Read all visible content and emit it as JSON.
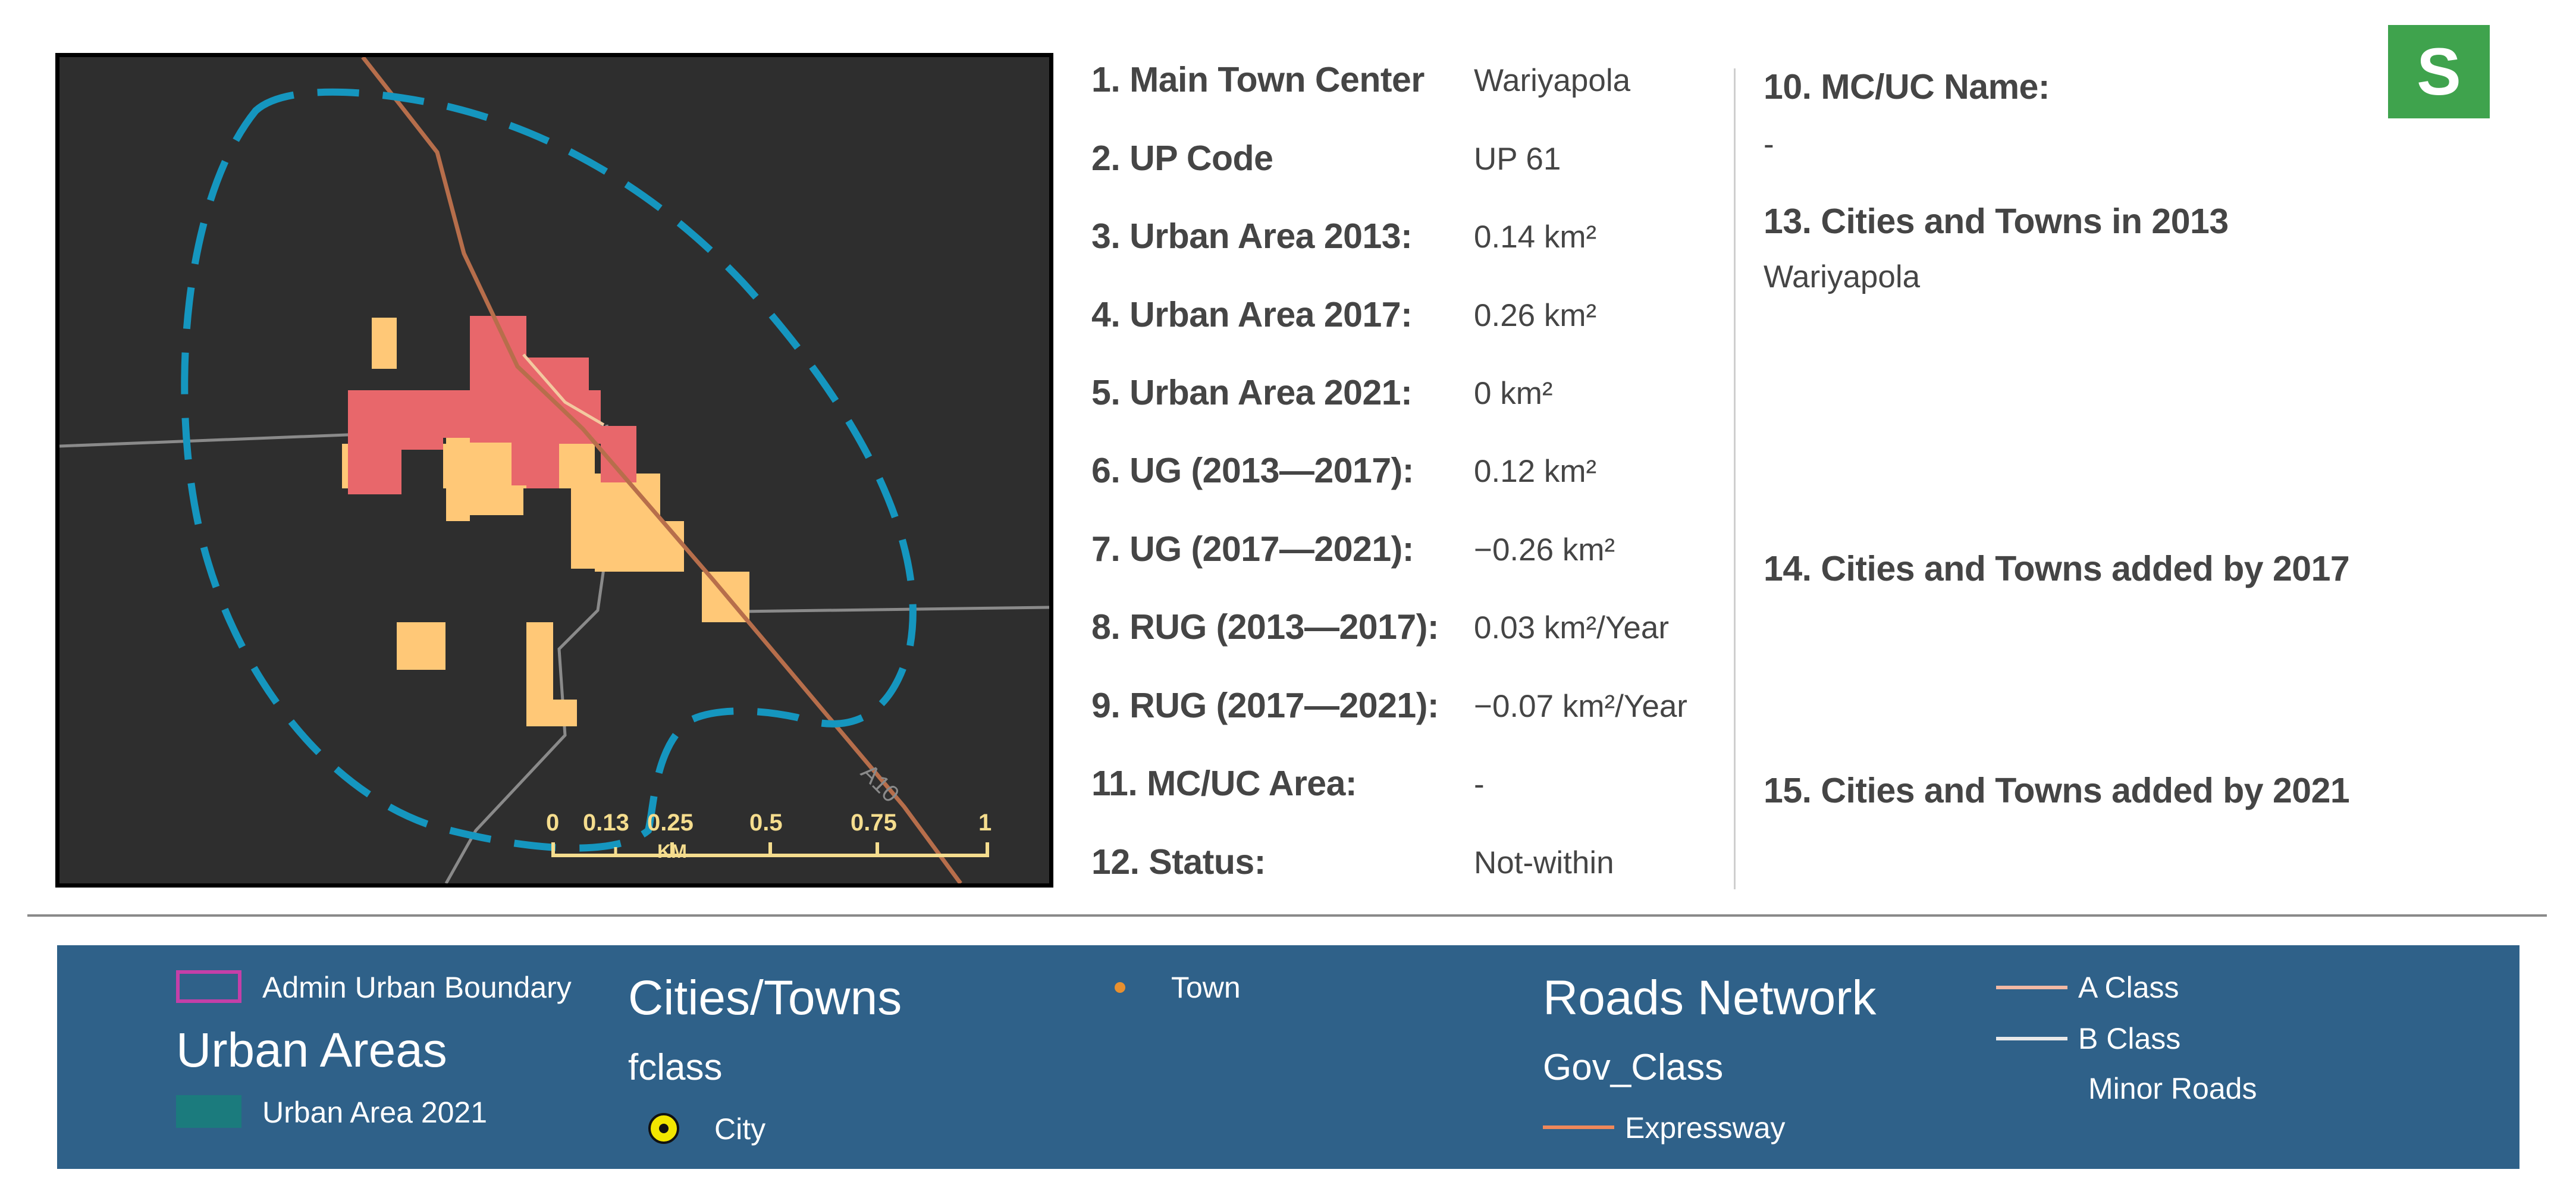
{
  "info": {
    "rows": [
      {
        "label": "1. Main Town Center",
        "value": "Wariyapola"
      },
      {
        "label": "2. UP Code",
        "value": "UP 61"
      },
      {
        "label": "3. Urban Area 2013:",
        "value": "0.14 km²"
      },
      {
        "label": "4. Urban Area 2017:",
        "value": "0.26 km²"
      },
      {
        "label": "5. Urban Area 2021:",
        "value": "0 km²"
      },
      {
        "label": "6. UG (2013—2017):",
        "value": "0.12 km²"
      },
      {
        "label": "7. UG (2017—2021):",
        "value": "−0.26 km²"
      },
      {
        "label": "8. RUG (2013—2017):",
        "value": "0.03 km²/Year"
      },
      {
        "label": "9. RUG (2017—2021):",
        "value": "−0.07 km²/Year"
      },
      {
        "label": "11. MC/UC Area:",
        "value": "-"
      },
      {
        "label": "12. Status:",
        "value": "Not-within"
      }
    ],
    "mcuc_name_label": "10. MC/UC Name:",
    "mcuc_name_value": "-",
    "cities_2013_label": "13. Cities and Towns in 2013",
    "cities_2013_value": "Wariyapola",
    "cities_2017_label": "14. Cities and Towns added by 2017",
    "cities_2021_label": "15. Cities and Towns added by 2021"
  },
  "badge": {
    "letter": "S",
    "color": "#3fa34d"
  },
  "map": {
    "road_label": "A10",
    "scale_ticks": [
      "0",
      "0.13",
      "0.25",
      "0.5",
      "0.75",
      "1"
    ],
    "scale_unit": "KM",
    "colors": {
      "background": "#2e2e2e",
      "urban_2013": "#e8676b",
      "urban_2017": "#ffc877",
      "admin_boundary": "#1596bf",
      "a_class_road": "#b76e4b",
      "minor_road": "#8a8a8a"
    }
  },
  "legend": {
    "admin_boundary": "Admin Urban Boundary",
    "urban_areas_title": "Urban Areas",
    "urban_area_2021": "Urban Area 2021",
    "cities_title": "Cities/Towns",
    "fclass": "fclass",
    "city": "City",
    "town": "Town",
    "roads_title": "Roads Network",
    "gov_class": "Gov_Class",
    "expressway": "Expressway",
    "a_class": "A Class",
    "b_class": "B Class",
    "minor_roads": "Minor Roads",
    "colors": {
      "background": "#2f6189",
      "admin_boundary": "#c43fa8",
      "urban_area_2021": "#1b7b7d",
      "city": "#f2e600",
      "town": "#e8902f",
      "expressway": "#f0885a",
      "a_class": "#f3b9a4",
      "b_class": "#e9e9e9"
    }
  }
}
